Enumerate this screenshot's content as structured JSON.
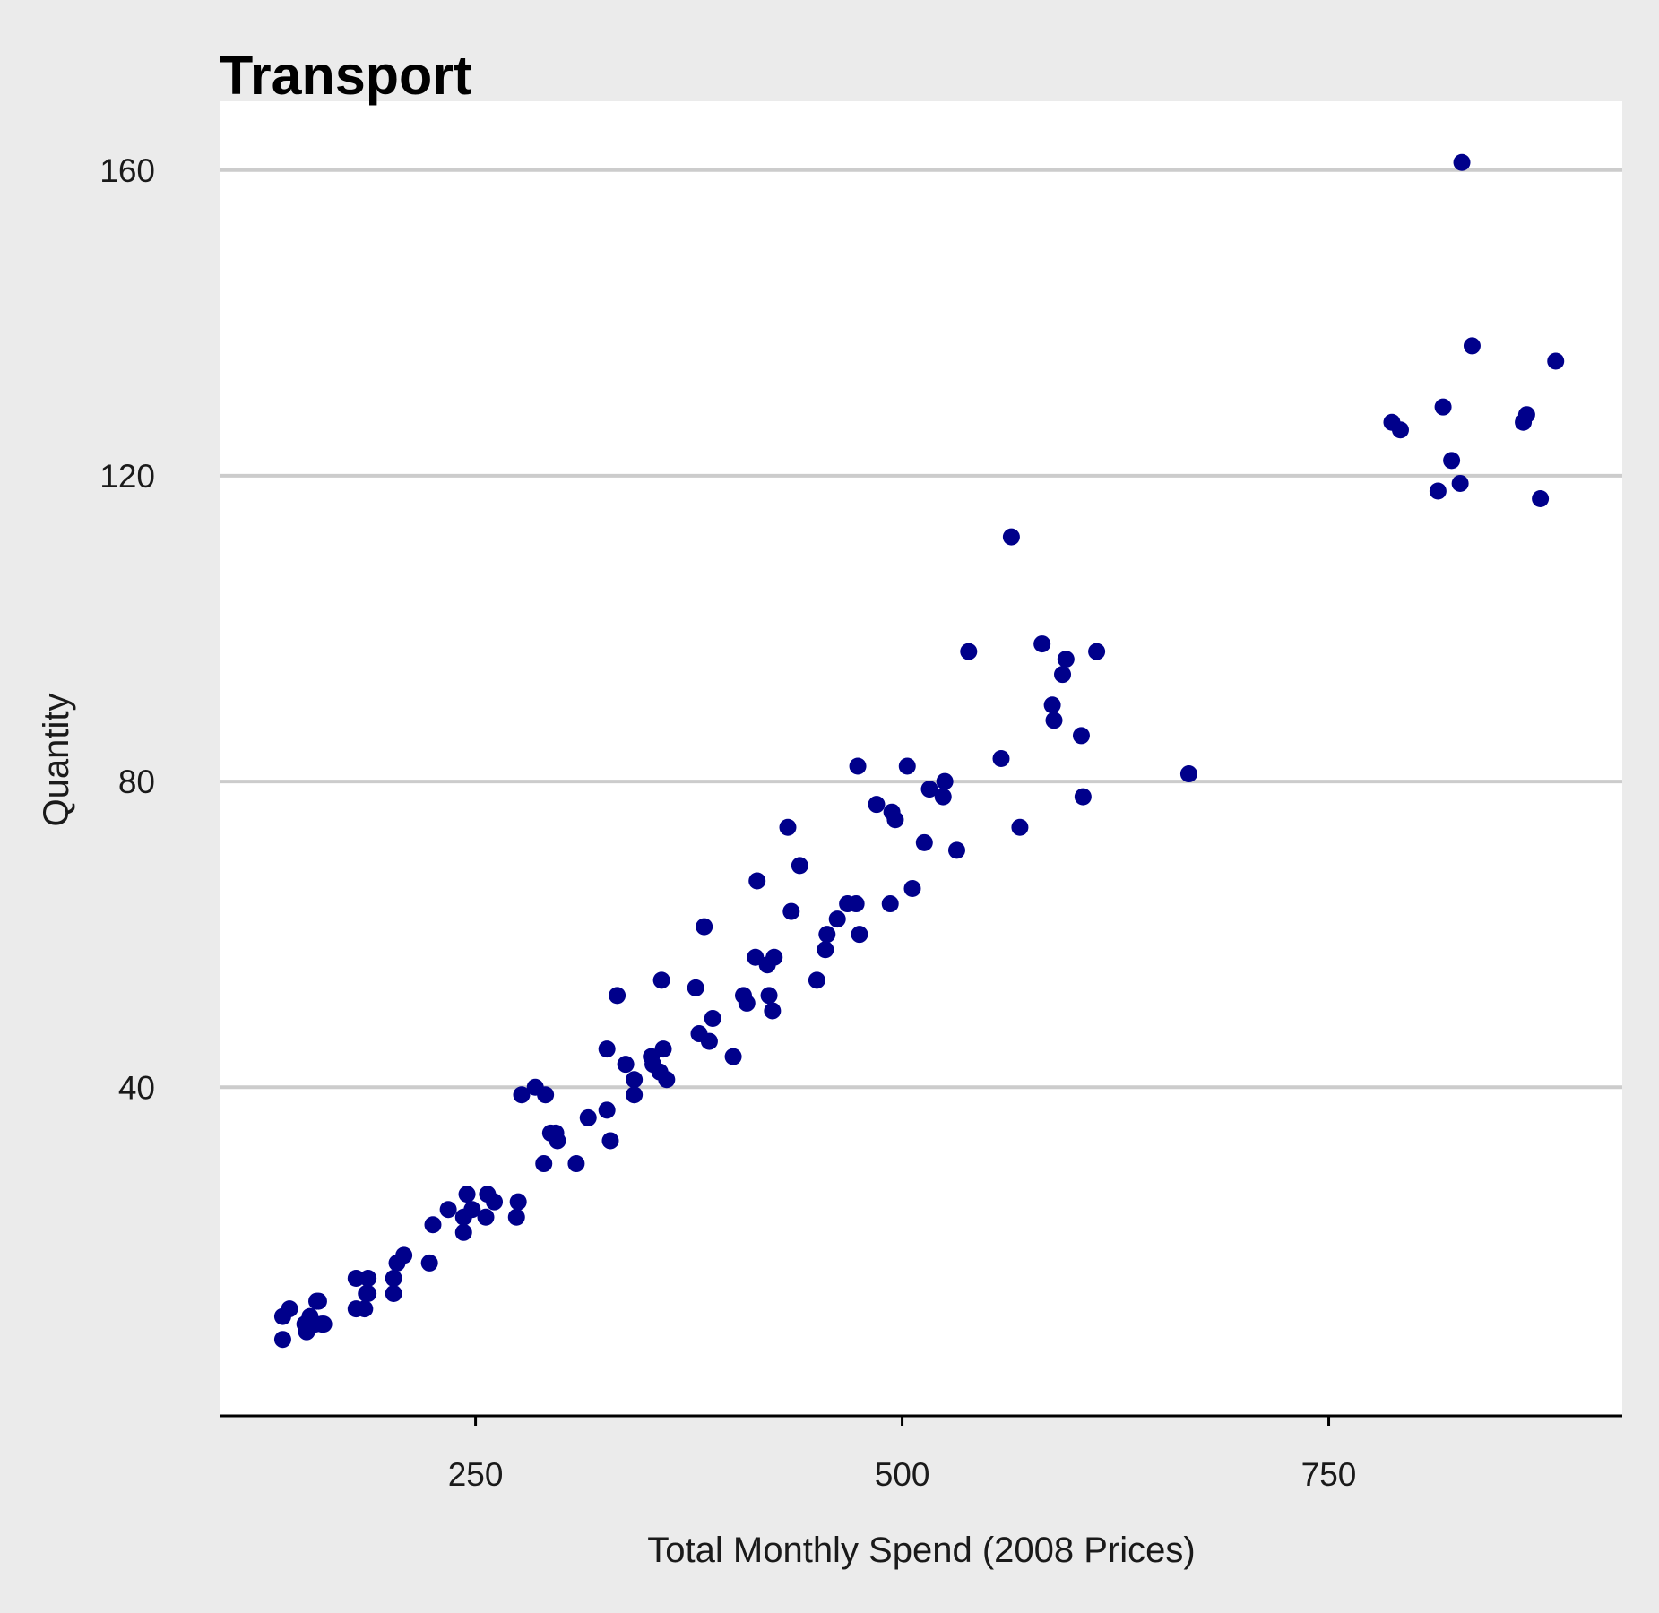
{
  "colors": {
    "background": "#ebebeb",
    "panel": "#ffffff",
    "grid": "#cccccc",
    "point": "#00008b",
    "axis": "#000000"
  },
  "chart_data": {
    "type": "scatter",
    "title": "Transport",
    "xlabel": "Total Monthly Spend (2008 Prices)",
    "ylabel": "Quantity",
    "xlim": [
      100,
      922
    ],
    "ylim": [
      -3,
      169
    ],
    "xticks": [
      250,
      500,
      750
    ],
    "xtick_labels": [
      "250",
      "500",
      "750"
    ],
    "yticks": [
      40,
      80,
      120,
      160
    ],
    "ytick_labels": [
      "40",
      "80",
      "120",
      "160"
    ],
    "grid": "horizontal",
    "series": [
      {
        "name": "Transport",
        "points": [
          [
            137,
            7
          ],
          [
            137,
            10
          ],
          [
            141,
            11
          ],
          [
            150,
            9
          ],
          [
            151,
            8
          ],
          [
            153,
            10
          ],
          [
            156,
            9
          ],
          [
            157,
            12
          ],
          [
            160,
            9
          ],
          [
            158,
            12
          ],
          [
            161,
            9
          ],
          [
            180,
            11
          ],
          [
            180,
            15
          ],
          [
            185,
            11
          ],
          [
            186,
            13
          ],
          [
            187,
            15
          ],
          [
            187,
            13
          ],
          [
            202,
            13
          ],
          [
            202,
            15
          ],
          [
            204,
            17
          ],
          [
            208,
            18
          ],
          [
            223,
            17
          ],
          [
            225,
            22
          ],
          [
            234,
            24
          ],
          [
            243,
            21
          ],
          [
            243,
            23
          ],
          [
            245,
            26
          ],
          [
            248,
            24
          ],
          [
            256,
            23
          ],
          [
            257,
            26
          ],
          [
            261,
            25
          ],
          [
            274,
            23
          ],
          [
            275,
            25
          ],
          [
            277,
            39
          ],
          [
            285,
            40
          ],
          [
            290,
            30
          ],
          [
            291,
            39
          ],
          [
            294,
            34
          ],
          [
            297,
            34
          ],
          [
            298,
            33
          ],
          [
            309,
            30
          ],
          [
            316,
            36
          ],
          [
            327,
            37
          ],
          [
            327,
            45
          ],
          [
            329,
            33
          ],
          [
            333,
            52
          ],
          [
            338,
            43
          ],
          [
            343,
            41
          ],
          [
            343,
            39
          ],
          [
            353,
            44
          ],
          [
            354,
            43
          ],
          [
            358,
            42
          ],
          [
            359,
            54
          ],
          [
            360,
            45
          ],
          [
            362,
            41
          ],
          [
            379,
            53
          ],
          [
            381,
            47
          ],
          [
            384,
            61
          ],
          [
            387,
            46
          ],
          [
            389,
            49
          ],
          [
            401,
            44
          ],
          [
            407,
            52
          ],
          [
            409,
            51
          ],
          [
            414,
            57
          ],
          [
            415,
            67
          ],
          [
            421,
            56
          ],
          [
            422,
            52
          ],
          [
            424,
            50
          ],
          [
            425,
            57
          ],
          [
            433,
            74
          ],
          [
            435,
            63
          ],
          [
            440,
            69
          ],
          [
            450,
            54
          ],
          [
            455,
            58
          ],
          [
            456,
            60
          ],
          [
            462,
            62
          ],
          [
            468,
            64
          ],
          [
            473,
            64
          ],
          [
            474,
            82
          ],
          [
            475,
            60
          ],
          [
            485,
            77
          ],
          [
            493,
            64
          ],
          [
            494,
            76
          ],
          [
            496,
            75
          ],
          [
            503,
            82
          ],
          [
            506,
            66
          ],
          [
            513,
            72
          ],
          [
            516,
            79
          ],
          [
            524,
            78
          ],
          [
            525,
            80
          ],
          [
            532,
            71
          ],
          [
            539,
            97
          ],
          [
            558,
            83
          ],
          [
            564,
            112
          ],
          [
            569,
            74
          ],
          [
            582,
            98
          ],
          [
            588,
            90
          ],
          [
            589,
            88
          ],
          [
            594,
            94
          ],
          [
            596,
            96
          ],
          [
            605,
            86
          ],
          [
            606,
            78
          ],
          [
            614,
            97
          ],
          [
            668,
            81
          ],
          [
            787,
            127
          ],
          [
            792,
            126
          ],
          [
            814,
            118
          ],
          [
            817,
            129
          ],
          [
            822,
            122
          ],
          [
            827,
            119
          ],
          [
            828,
            161
          ],
          [
            834,
            137
          ],
          [
            864,
            127
          ],
          [
            866,
            128
          ],
          [
            874,
            117
          ],
          [
            883,
            135
          ]
        ]
      }
    ]
  }
}
